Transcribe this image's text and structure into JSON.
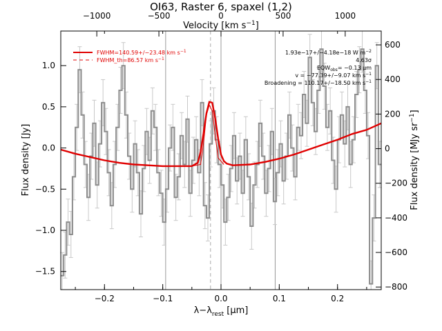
{
  "chart_data": {
    "type": "line",
    "title": "OI63, Raster 6, spaxel (1,2)",
    "xlabel": "λ−λ",
    "xlabel_sub": "rest",
    "xlabel_unit": " [μm]",
    "ylabel": "Flux density [Jy]",
    "y2label": "Flux density [MJy sr",
    "y2label_sup": "−1",
    "y2label_end": "]",
    "top_axis_label": "Velocity [km s",
    "top_axis_sup": "−1",
    "top_axis_end": "]",
    "xlim": [
      -0.275,
      0.275
    ],
    "ylim": [
      -1.72,
      1.42
    ],
    "y2lim": [
      -815,
      680
    ],
    "vlim": [
      -1290,
      1290
    ],
    "x_ticks": [
      -0.2,
      -0.1,
      0.0,
      0.1,
      0.2
    ],
    "x_tick_labels": [
      "−0.2",
      "−0.1",
      "0.0",
      "0.1",
      "0.2"
    ],
    "y_ticks": [
      -1.5,
      -1.0,
      -0.5,
      0.0,
      0.5,
      1.0
    ],
    "y_tick_labels": [
      "−1.5",
      "−1.0",
      "−0.5",
      "0.0",
      "0.5",
      "1.0"
    ],
    "y2_ticks": [
      -800,
      -600,
      -400,
      -200,
      0,
      200,
      400,
      600
    ],
    "y2_tick_labels": [
      "−800",
      "−600",
      "−400",
      "−200",
      "0",
      "200",
      "400",
      "600"
    ],
    "v_ticks": [
      -1000,
      -500,
      0,
      500,
      1000
    ],
    "v_tick_labels": [
      "−1000",
      "−500",
      "0",
      "500",
      "1000"
    ],
    "vertical_lines": [
      -0.095,
      0.0,
      0.093
    ],
    "dashed_line": -0.018,
    "legend": {
      "placement": "top-left",
      "entries": [
        {
          "label": "FWHM=140.59+/−23.48 km s",
          "sup": "−1",
          "style": "solid"
        },
        {
          "label": "FWHM_th=86.57 km s",
          "sup": "−1",
          "style": "dashed"
        }
      ]
    },
    "annotations": [
      "1.93e−17+/−4.18e−18 W m",
      "4.63σ",
      "EQW",
      "= −0.13 μm",
      "v = −77.39+/−9.07 km s",
      "Broadening = 110.17+/−18.50 km s"
    ],
    "annotation_sups": [
      "−2",
      "−1",
      "−1"
    ],
    "annotation_sub": "obs",
    "observed": {
      "x": [
        -0.275,
        -0.27,
        -0.265,
        -0.26,
        -0.255,
        -0.25,
        -0.245,
        -0.24,
        -0.235,
        -0.23,
        -0.225,
        -0.22,
        -0.215,
        -0.21,
        -0.205,
        -0.2,
        -0.195,
        -0.19,
        -0.185,
        -0.18,
        -0.175,
        -0.17,
        -0.165,
        -0.16,
        -0.155,
        -0.15,
        -0.145,
        -0.14,
        -0.135,
        -0.13,
        -0.125,
        -0.12,
        -0.115,
        -0.11,
        -0.105,
        -0.1,
        -0.095,
        -0.09,
        -0.085,
        -0.08,
        -0.075,
        -0.07,
        -0.065,
        -0.06,
        -0.055,
        -0.05,
        -0.045,
        -0.04,
        -0.035,
        -0.03,
        -0.025,
        -0.02,
        -0.015,
        -0.01,
        -0.005,
        0.0,
        0.005,
        0.01,
        0.015,
        0.02,
        0.025,
        0.03,
        0.035,
        0.04,
        0.045,
        0.05,
        0.055,
        0.06,
        0.065,
        0.07,
        0.075,
        0.08,
        0.085,
        0.09,
        0.095,
        0.1,
        0.105,
        0.11,
        0.115,
        0.12,
        0.125,
        0.13,
        0.135,
        0.14,
        0.145,
        0.15,
        0.155,
        0.16,
        0.165,
        0.17,
        0.175,
        0.18,
        0.185,
        0.19,
        0.195,
        0.2,
        0.205,
        0.21,
        0.215,
        0.22,
        0.225,
        0.23,
        0.235,
        0.24,
        0.245,
        0.25,
        0.255,
        0.26,
        0.265,
        0.27
      ],
      "y": [
        -1.55,
        -1.3,
        -0.9,
        -1.05,
        -0.35,
        0.25,
        0.95,
        0.4,
        -0.2,
        -0.6,
        -0.1,
        0.3,
        -0.45,
        0.05,
        0.55,
        0.2,
        -0.3,
        -0.7,
        -0.2,
        0.25,
        0.7,
        1.0,
        0.4,
        -0.1,
        -0.5,
        0.05,
        -0.3,
        -0.8,
        -0.25,
        0.2,
        -0.15,
        0.45,
        0.25,
        -0.3,
        -0.55,
        -0.9,
        -0.5,
        0.0,
        0.25,
        -0.6,
        -0.35,
        0.15,
        -0.2,
        0.35,
        -0.55,
        -0.15,
        0.1,
        -0.3,
        0.55,
        -0.7,
        -0.85,
        0.05,
        0.45,
        0.1,
        -0.2,
        -0.45,
        -0.9,
        -0.6,
        -0.25,
        0.15,
        -0.4,
        -0.1,
        -0.55,
        0.1,
        -0.35,
        -0.95,
        -0.45,
        -0.2,
        0.3,
        -0.1,
        -0.55,
        -0.25,
        0.2,
        -0.65,
        -0.3,
        0.05,
        -0.4,
        -0.1,
        0.4,
        0.0,
        -0.35,
        0.25,
        0.15,
        0.65,
        0.3,
        1.1,
        0.55,
        0.2,
        0.7,
        1.2,
        0.75,
        0.25,
        0.45,
        -0.15,
        -0.5,
        0.1,
        0.4,
        0.05,
        0.5,
        -0.2,
        0.1,
        0.65,
        0.95,
        1.2,
        0.7,
        0.15,
        -1.65,
        -0.85,
        1.0,
        -0.2
      ],
      "error": 0.28
    },
    "model": {
      "x": [
        -0.275,
        -0.25,
        -0.225,
        -0.2,
        -0.175,
        -0.15,
        -0.125,
        -0.1,
        -0.075,
        -0.05,
        -0.04,
        -0.035,
        -0.03,
        -0.025,
        -0.02,
        -0.015,
        -0.01,
        -0.005,
        0.0,
        0.005,
        0.01,
        0.02,
        0.05,
        0.075,
        0.1,
        0.125,
        0.15,
        0.175,
        0.2,
        0.225,
        0.25,
        0.275
      ],
      "y": [
        -0.02,
        -0.07,
        -0.11,
        -0.15,
        -0.18,
        -0.2,
        -0.21,
        -0.22,
        -0.22,
        -0.22,
        -0.18,
        -0.05,
        0.18,
        0.42,
        0.56,
        0.55,
        0.36,
        0.12,
        -0.08,
        -0.16,
        -0.19,
        -0.21,
        -0.2,
        -0.17,
        -0.13,
        -0.08,
        -0.02,
        0.04,
        0.1,
        0.17,
        0.22,
        0.3
      ]
    }
  }
}
